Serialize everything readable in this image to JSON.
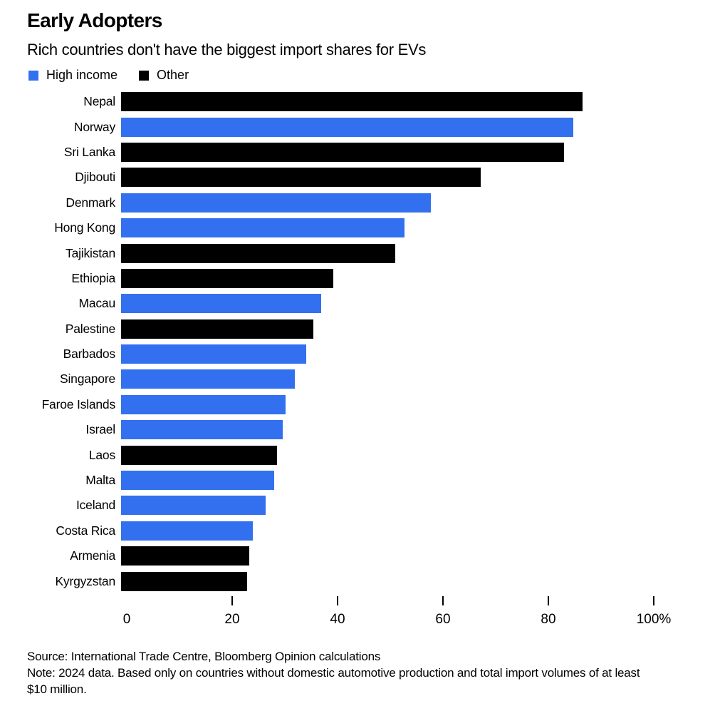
{
  "header": {
    "title": "Early Adopters",
    "subtitle": "Rich countries don't have the biggest import shares for EVs"
  },
  "legend": [
    {
      "label": "High income",
      "color": "#3370f0"
    },
    {
      "label": "Other",
      "color": "#000000"
    }
  ],
  "chart_data": {
    "type": "bar",
    "orientation": "horizontal",
    "unit": "%",
    "xlim": [
      0,
      100
    ],
    "xticks": [
      0,
      20,
      40,
      60,
      80,
      100
    ],
    "xtick_labels": [
      "0",
      "20",
      "40",
      "60",
      "80",
      "100%"
    ],
    "group_colors": {
      "High income": "#3370f0",
      "Other": "#000000"
    },
    "bars": [
      {
        "label": "Nepal",
        "value": 87.5,
        "group": "Other"
      },
      {
        "label": "Norway",
        "value": 85.8,
        "group": "High income"
      },
      {
        "label": "Sri Lanka",
        "value": 84.0,
        "group": "Other"
      },
      {
        "label": "Djibouti",
        "value": 68.3,
        "group": "Other"
      },
      {
        "label": "Denmark",
        "value": 58.8,
        "group": "High income"
      },
      {
        "label": "Hong Kong",
        "value": 53.8,
        "group": "High income"
      },
      {
        "label": "Tajikistan",
        "value": 52.0,
        "group": "Other"
      },
      {
        "label": "Ethiopia",
        "value": 40.3,
        "group": "Other"
      },
      {
        "label": "Macau",
        "value": 38.0,
        "group": "High income"
      },
      {
        "label": "Palestine",
        "value": 36.5,
        "group": "Other"
      },
      {
        "label": "Barbados",
        "value": 35.2,
        "group": "High income"
      },
      {
        "label": "Singapore",
        "value": 33.0,
        "group": "High income"
      },
      {
        "label": "Faroe Islands",
        "value": 31.2,
        "group": "High income"
      },
      {
        "label": "Israel",
        "value": 30.7,
        "group": "High income"
      },
      {
        "label": "Laos",
        "value": 29.6,
        "group": "Other"
      },
      {
        "label": "Malta",
        "value": 29.0,
        "group": "High income"
      },
      {
        "label": "Iceland",
        "value": 27.4,
        "group": "High income"
      },
      {
        "label": "Costa Rica",
        "value": 25.0,
        "group": "High income"
      },
      {
        "label": "Armenia",
        "value": 24.3,
        "group": "Other"
      },
      {
        "label": "Kyrgyzstan",
        "value": 23.9,
        "group": "Other"
      }
    ]
  },
  "footer": {
    "source": "Source: International Trade Centre, Bloomberg Opinion calculations",
    "note": "Note: 2024 data. Based only on countries without domestic automotive production and total import volumes of at least $10 million."
  }
}
